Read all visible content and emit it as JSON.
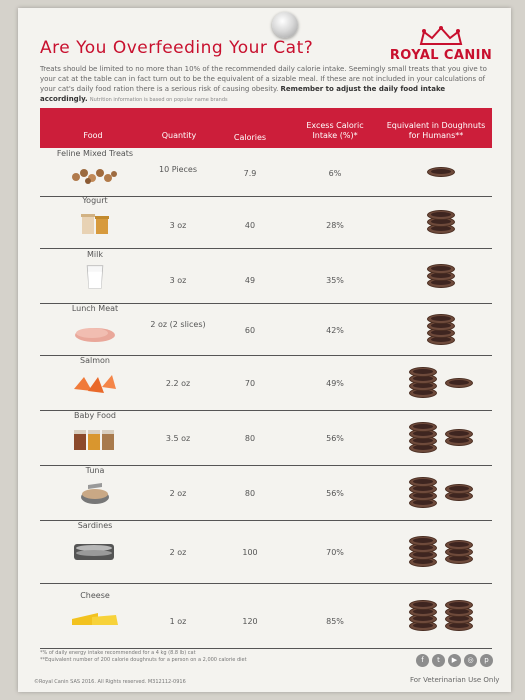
{
  "title": "Are You Overfeeding Your Cat?",
  "brand": "ROYAL CANIN",
  "intro": {
    "text": "Treats should be limited to no more than 10% of the recommended daily calorie intake. Seemingly small treats that you give to your cat at the table can in fact turn out to be the equivalent of a sizable meal. If these are not included in your calculations of your cat's daily food ration there is a serious risk of causing obesity.",
    "bold": "Remember to adjust the daily food intake accordingly.",
    "small": "Nutrition information is based on popular name brands"
  },
  "table": {
    "headers": {
      "food": "Food",
      "quantity": "Quantity",
      "calories": "Calories",
      "excess": "Excess Caloric Intake (%)*",
      "equivalent": "Equivalent in Doughnuts for Humans**"
    },
    "rows": [
      {
        "food": "Feline Mixed Treats",
        "quantity": "10 Pieces",
        "calories": "7.9",
        "excess": "6%",
        "donuts": 1
      },
      {
        "food": "Yogurt",
        "quantity": "3 oz",
        "calories": "40",
        "excess": "28%",
        "donuts": 3
      },
      {
        "food": "Milk",
        "quantity": "3 oz",
        "calories": "49",
        "excess": "35%",
        "donuts": 3
      },
      {
        "food": "Lunch Meat",
        "quantity": "2 oz (2 slices)",
        "calories": "60",
        "excess": "42%",
        "donuts": 4
      },
      {
        "food": "Salmon",
        "quantity": "2.2 oz",
        "calories": "70",
        "excess": "49%",
        "donuts": 5
      },
      {
        "food": "Baby Food",
        "quantity": "3.5 oz",
        "calories": "80",
        "excess": "56%",
        "donuts": 6
      },
      {
        "food": "Tuna",
        "quantity": "2 oz",
        "calories": "80",
        "excess": "56%",
        "donuts": 6
      },
      {
        "food": "Sardines",
        "quantity": "2 oz",
        "calories": "100",
        "excess": "70%",
        "donuts": 7
      },
      {
        "food": "Cheese",
        "quantity": "1 oz",
        "calories": "120",
        "excess": "85%",
        "donuts": 8
      }
    ]
  },
  "footnotes": {
    "one": "*% of daily energy intake recommended for a 4 kg (8.8 lb) cat",
    "two": "**Equivalent number of 200 calorie doughnuts for a person on a 2,000 calorie diet"
  },
  "copyright": "©Royal Canin SAS 2016. All Rights reserved. M312112-0916",
  "vet_note": "For Veterinarian Use Only",
  "social_icons": [
    "facebook-icon",
    "twitter-icon",
    "youtube-icon",
    "instagram-icon",
    "pinterest-icon"
  ],
  "colors": {
    "accent": "#c8102e",
    "header_bg": "#cc1e3a",
    "donut": "#6e4a3b"
  }
}
